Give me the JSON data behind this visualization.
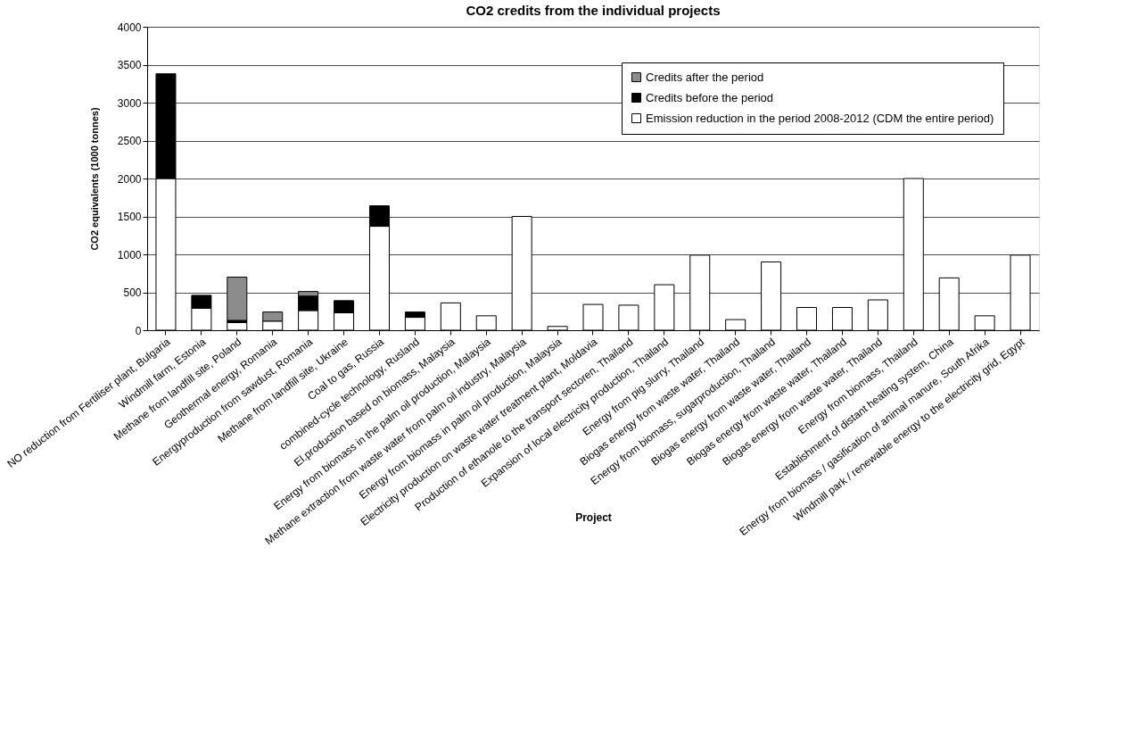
{
  "chart_data": {
    "type": "bar",
    "title": "CO2 credits from the individual projects",
    "xlabel": "Project",
    "ylabel": "CO2 equivalents (1000 tonnes)",
    "categories": [
      "NO reduction from Fertiliser plant, Bulgaria",
      "Windmill farm, Estonia",
      "Methane from landfill site, Poland",
      "Geothermal energy, Romania",
      "Energyproduction from sawdust, Romania",
      "Methane from landfill site, Ukraine",
      "Coal to gas, Russia",
      "combined-cycle technology, Rusland",
      "El.production based on biomass, Malaysia",
      "Energy from biomass in the palm oil production, Malaysia",
      "Methane extraction from waste water from palm oil industry, Malaysia",
      "Energy from biomass in palm oil production, Malaysia",
      "Electricity production on waste water treatment plant, Moldavia",
      "Production of ethanole to the transport sectoren, Thailand",
      "Expansion of local electricity production, Thailand",
      "Energy from pig slurry, Thailand",
      "Biogas energy from waste water, Thailand",
      "Energy from biomass, sugarproduction, Thailand",
      "Biogas energy from waste water, Thailand",
      "Biogas energy from waste water, Thailand",
      "Biogas energy from waste water, Thailand",
      "Energy from biomass, Thailand",
      "Establishment of distant heating system, China",
      "Energy from biomass / gasification of animal manure, South Afrika",
      "Windmill park / renewable energy to the electricity grid, Egypt"
    ],
    "stacked": true,
    "series": [
      {
        "name": "Emission reduction in the period 2008-2012 (CDM the entire period)",
        "color": "#ffffff",
        "values": [
          2000,
          290,
          100,
          120,
          260,
          230,
          1370,
          170,
          360,
          190,
          1500,
          50,
          340,
          330,
          600,
          990,
          140,
          900,
          300,
          300,
          400,
          2000,
          690,
          190,
          990
        ]
      },
      {
        "name": "Credits before the period",
        "color": "#000000",
        "values": [
          1380,
          170,
          30,
          null,
          190,
          160,
          270,
          70,
          null,
          null,
          null,
          null,
          null,
          null,
          null,
          null,
          null,
          null,
          null,
          null,
          null,
          null,
          null,
          null,
          null
        ]
      },
      {
        "name": "Credits after the period",
        "color": "#8c8c8c",
        "values": [
          null,
          null,
          570,
          120,
          60,
          null,
          null,
          null,
          null,
          null,
          null,
          null,
          null,
          null,
          null,
          null,
          null,
          null,
          null,
          null,
          null,
          null,
          null,
          null,
          null
        ]
      }
    ],
    "ylim": [
      0,
      4000
    ],
    "yticks": [
      0,
      500,
      1000,
      1500,
      2000,
      2500,
      3000,
      3500,
      4000
    ],
    "grid": "y",
    "legend": "top right"
  }
}
